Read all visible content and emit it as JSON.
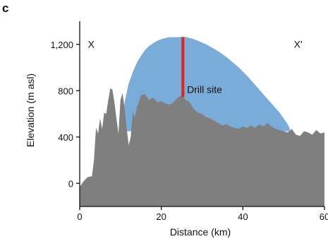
{
  "panel_label": "c",
  "chart_data": {
    "type": "area",
    "xlabel": "Distance (km)",
    "ylabel": "Elevation (m asl)",
    "xlim": [
      0,
      60
    ],
    "ylim": [
      -200,
      1400
    ],
    "xticks": [
      0,
      20,
      40,
      60
    ],
    "yticks": [
      0,
      400,
      800,
      1200
    ],
    "ytick_labels": [
      "0",
      "400",
      "800",
      "1,200"
    ],
    "grid": false,
    "series": [
      {
        "key": "bedrock",
        "color": "#7f7f7f",
        "x": [
          0,
          1,
          2,
          3,
          3.5,
          4,
          4.5,
          5,
          5.5,
          6,
          6.5,
          7,
          7.5,
          8,
          8.5,
          9,
          9.5,
          10,
          10.5,
          11,
          11.5,
          12,
          12.5,
          13,
          13.5,
          14,
          14.5,
          15,
          16,
          17,
          18,
          19,
          20,
          21,
          22,
          23,
          24,
          25,
          26,
          27,
          28,
          29,
          30,
          31,
          32,
          33,
          34,
          35,
          36,
          37,
          38,
          39,
          40,
          41,
          42,
          43,
          44,
          45,
          46,
          47,
          48,
          49,
          50,
          51,
          52,
          53,
          54,
          55,
          56,
          57,
          58,
          59,
          60
        ],
        "y": [
          -30,
          20,
          55,
          60,
          200,
          480,
          430,
          560,
          470,
          610,
          600,
          720,
          820,
          810,
          700,
          560,
          430,
          720,
          780,
          650,
          480,
          330,
          400,
          620,
          570,
          660,
          700,
          760,
          770,
          720,
          740,
          700,
          710,
          690,
          680,
          700,
          740,
          760,
          720,
          700,
          640,
          610,
          600,
          570,
          560,
          540,
          520,
          500,
          510,
          490,
          480,
          470,
          490,
          480,
          500,
          480,
          510,
          490,
          520,
          490,
          470,
          460,
          450,
          440,
          470,
          420,
          410,
          450,
          440,
          420,
          460,
          430,
          440
        ]
      },
      {
        "key": "ice",
        "color": "#79acd8",
        "x": [
          10.5,
          11,
          12,
          13,
          14,
          15,
          16,
          17,
          18,
          19,
          20,
          21,
          22,
          23,
          24,
          25,
          26,
          27,
          28,
          29,
          30,
          31,
          32,
          33,
          34,
          35,
          36,
          37,
          38,
          39,
          40,
          41,
          42,
          43,
          44,
          45,
          46,
          47,
          48,
          49,
          50,
          51,
          51.5
        ],
        "y": [
          480,
          700,
          860,
          960,
          1040,
          1100,
          1150,
          1185,
          1210,
          1230,
          1245,
          1255,
          1262,
          1262,
          1262,
          1265,
          1263,
          1255,
          1245,
          1230,
          1215,
          1200,
          1180,
          1160,
          1140,
          1115,
          1090,
          1060,
          1030,
          1000,
          965,
          930,
          890,
          850,
          810,
          770,
          730,
          690,
          650,
          610,
          560,
          510,
          470
        ]
      }
    ],
    "annotations": [
      {
        "label": "X",
        "x": 2,
        "y": 1170
      },
      {
        "label": "X'",
        "x": 52.5,
        "y": 1170
      },
      {
        "label": "Drill site",
        "x": 26.3,
        "y": 780
      }
    ],
    "marker": {
      "name": "drill site",
      "x": 25.3,
      "y_bottom": 745,
      "y_top": 1262,
      "color": "#e2231a"
    }
  }
}
